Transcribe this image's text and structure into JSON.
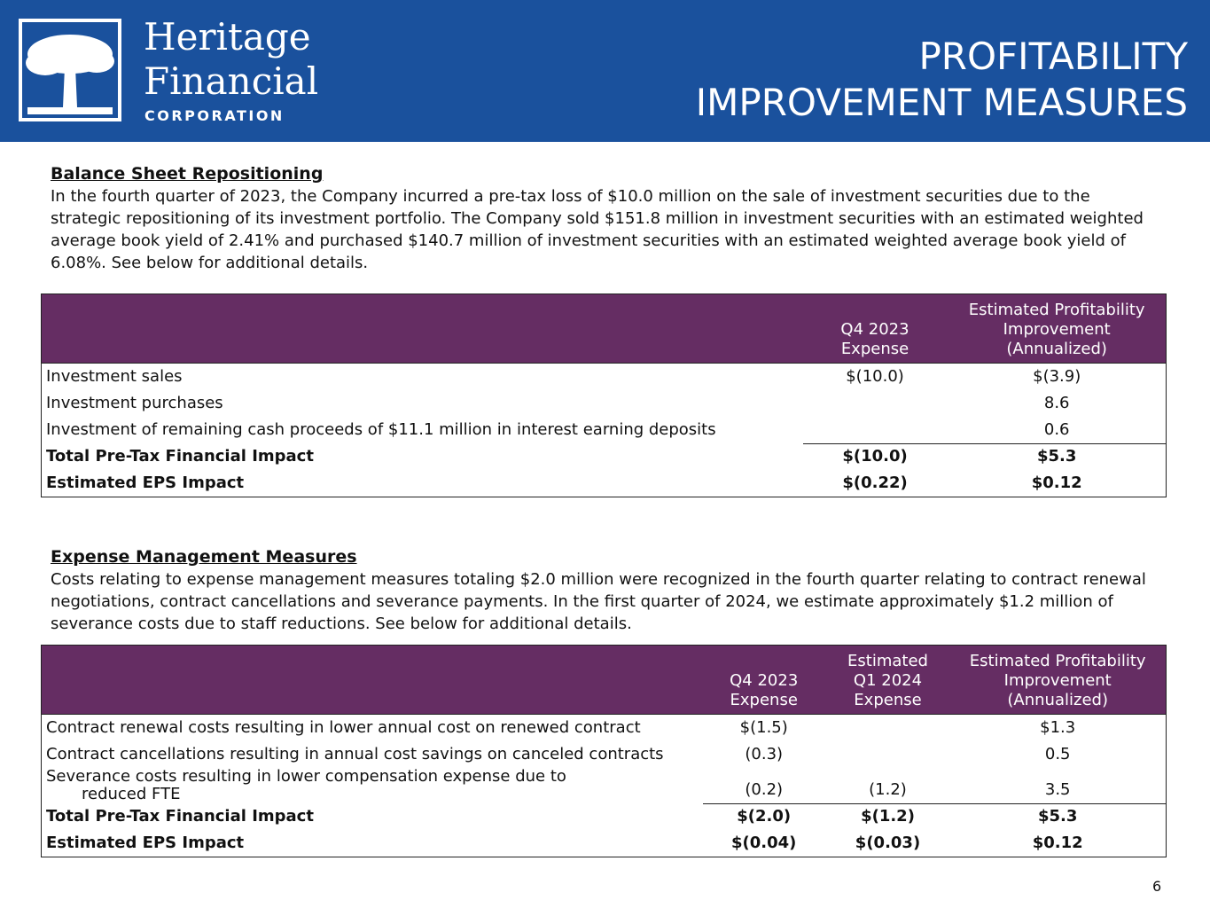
{
  "header": {
    "logo": {
      "line1": "Heritage",
      "line2": "Financial",
      "line3": "CORPORATION"
    },
    "title_lines": [
      "PROFITABILITY",
      "IMPROVEMENT MEASURES"
    ]
  },
  "sections": [
    {
      "heading": "Balance Sheet Repositioning",
      "text": "In the fourth quarter of 2023, the Company incurred a pre-tax loss of $10.0 million on the sale of investment securities due to the strategic repositioning of its investment portfolio. The Company sold $151.8 million in investment securities with an estimated weighted average book yield of 2.41% and purchased $140.7 million of investment securities with an estimated weighted average book yield of 6.08%. See below for additional details.",
      "table": {
        "columns": [
          [
            "Q4 2023",
            "Expense"
          ],
          [
            "Estimated Profitability",
            "Improvement",
            "(Annualized)"
          ]
        ],
        "rows": [
          {
            "label": [
              "Investment sales"
            ],
            "values": [
              "$(10.0)",
              "$(3.9)"
            ]
          },
          {
            "label": [
              "Investment purchases"
            ],
            "values": [
              null,
              "8.6"
            ]
          },
          {
            "label": [
              "Investment of remaining cash proceeds of $11.1 million in interest earning deposits"
            ],
            "values": [
              null,
              "0.6"
            ]
          },
          {
            "label": [
              "Total Pre-Tax Financial Impact"
            ],
            "values": [
              "$(10.0)",
              "$5.3"
            ],
            "bold": true,
            "rule_above": true
          },
          {
            "label": [
              "Estimated EPS Impact"
            ],
            "values": [
              "$(0.22)",
              "$0.12"
            ],
            "bold": true
          }
        ]
      }
    },
    {
      "heading": "Expense Management Measures",
      "text": "Costs relating to expense management measures totaling $2.0 million were recognized in the fourth quarter relating to contract renewal negotiations, contract cancellations and severance payments. In the first quarter of 2024, we estimate approximately $1.2 million of severance costs due to staff reductions. See below for additional details.",
      "table": {
        "columns": [
          [
            "Q4 2023",
            "Expense"
          ],
          [
            "Estimated",
            "Q1 2024",
            "Expense"
          ],
          [
            "Estimated Profitability",
            "Improvement",
            "(Annualized)"
          ]
        ],
        "rows": [
          {
            "label": [
              "Contract renewal costs resulting in lower annual cost on renewed contract"
            ],
            "values": [
              "$(1.5)",
              null,
              "$1.3"
            ]
          },
          {
            "label": [
              "Contract cancellations resulting in annual cost savings on canceled contracts"
            ],
            "values": [
              "(0.3)",
              null,
              "0.5"
            ]
          },
          {
            "label": [
              "Severance costs resulting in lower compensation expense due to",
              "reduced FTE"
            ],
            "values": [
              "(0.2)",
              "(1.2)",
              "3.5"
            ]
          },
          {
            "label": [
              "Total Pre-Tax Financial Impact"
            ],
            "values": [
              "$(2.0)",
              "$(1.2)",
              "$5.3"
            ],
            "bold": true,
            "rule_above": true
          },
          {
            "label": [
              "Estimated EPS Impact"
            ],
            "values": [
              "$(0.04)",
              "$(0.03)",
              "$0.12"
            ],
            "bold": true
          }
        ]
      }
    }
  ],
  "page_number": "6"
}
